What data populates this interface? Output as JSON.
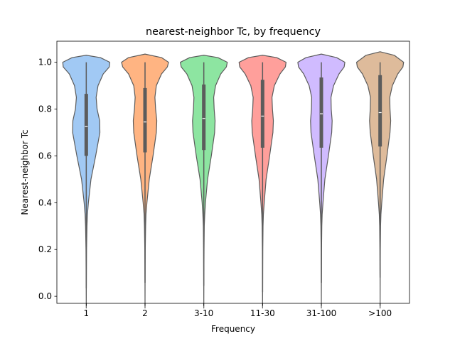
{
  "chart_data": {
    "type": "violin",
    "title": "nearest-neighbor Tc, by frequency",
    "xlabel": "Frequency",
    "ylabel": "Nearest-neighbor Tc",
    "ylim": [
      -0.03,
      1.09
    ],
    "yticks": [
      0.0,
      0.2,
      0.4,
      0.6,
      0.8,
      1.0
    ],
    "ytick_labels": [
      "0.0",
      "0.2",
      "0.4",
      "0.6",
      "0.8",
      "1.0"
    ],
    "categories": [
      "1",
      "2",
      "3-10",
      "11-30",
      "31-100",
      ">100"
    ],
    "colors": [
      "#a1c9f4",
      "#ffb482",
      "#8de5a1",
      "#ff9f9b",
      "#d0bbff",
      "#debb9b"
    ],
    "grid": false,
    "series": [
      {
        "category": "1",
        "min": 0.035,
        "q1": 0.6,
        "median": 0.725,
        "q3": 0.865,
        "max": 1.0,
        "density": [
          [
            -0.05,
            0
          ],
          [
            0.035,
            0.003
          ],
          [
            0.1,
            0.006
          ],
          [
            0.2,
            0.012
          ],
          [
            0.3,
            0.03
          ],
          [
            0.35,
            0.05
          ],
          [
            0.4,
            0.09
          ],
          [
            0.5,
            0.2
          ],
          [
            0.6,
            0.4
          ],
          [
            0.7,
            0.58
          ],
          [
            0.75,
            0.57
          ],
          [
            0.8,
            0.46
          ],
          [
            0.85,
            0.42
          ],
          [
            0.9,
            0.5
          ],
          [
            0.95,
            0.72
          ],
          [
            0.98,
            0.98
          ],
          [
            1.0,
            1.0
          ],
          [
            1.02,
            0.6
          ],
          [
            1.03,
            0
          ]
        ]
      },
      {
        "category": "2",
        "min": 0.058,
        "q1": 0.615,
        "median": 0.745,
        "q3": 0.89,
        "max": 1.0,
        "density": [
          [
            -0.05,
            0
          ],
          [
            0.058,
            0.003
          ],
          [
            0.1,
            0.005
          ],
          [
            0.2,
            0.01
          ],
          [
            0.3,
            0.025
          ],
          [
            0.35,
            0.04
          ],
          [
            0.4,
            0.08
          ],
          [
            0.5,
            0.18
          ],
          [
            0.6,
            0.34
          ],
          [
            0.7,
            0.48
          ],
          [
            0.75,
            0.5
          ],
          [
            0.8,
            0.45
          ],
          [
            0.85,
            0.42
          ],
          [
            0.9,
            0.48
          ],
          [
            0.95,
            0.7
          ],
          [
            0.98,
            0.95
          ],
          [
            1.0,
            1.0
          ],
          [
            1.02,
            0.7
          ],
          [
            1.035,
            0
          ]
        ]
      },
      {
        "category": "3-10",
        "min": 0.045,
        "q1": 0.625,
        "median": 0.76,
        "q3": 0.905,
        "max": 1.0,
        "density": [
          [
            -0.05,
            0
          ],
          [
            0.045,
            0.003
          ],
          [
            0.1,
            0.005
          ],
          [
            0.2,
            0.01
          ],
          [
            0.3,
            0.02
          ],
          [
            0.35,
            0.04
          ],
          [
            0.4,
            0.07
          ],
          [
            0.5,
            0.16
          ],
          [
            0.6,
            0.32
          ],
          [
            0.7,
            0.46
          ],
          [
            0.75,
            0.48
          ],
          [
            0.8,
            0.44
          ],
          [
            0.85,
            0.42
          ],
          [
            0.9,
            0.5
          ],
          [
            0.95,
            0.72
          ],
          [
            0.98,
            0.96
          ],
          [
            1.0,
            1.0
          ],
          [
            1.02,
            0.6
          ],
          [
            1.03,
            0
          ]
        ]
      },
      {
        "category": "11-30",
        "min": 0.018,
        "q1": 0.635,
        "median": 0.77,
        "q3": 0.925,
        "max": 1.0,
        "density": [
          [
            -0.05,
            0
          ],
          [
            0.018,
            0.003
          ],
          [
            0.1,
            0.005
          ],
          [
            0.2,
            0.009
          ],
          [
            0.3,
            0.02
          ],
          [
            0.35,
            0.035
          ],
          [
            0.4,
            0.07
          ],
          [
            0.5,
            0.15
          ],
          [
            0.6,
            0.3
          ],
          [
            0.7,
            0.44
          ],
          [
            0.75,
            0.46
          ],
          [
            0.8,
            0.42
          ],
          [
            0.85,
            0.4
          ],
          [
            0.9,
            0.5
          ],
          [
            0.95,
            0.74
          ],
          [
            0.98,
            0.97
          ],
          [
            1.0,
            1.0
          ],
          [
            1.02,
            0.6
          ],
          [
            1.03,
            0
          ]
        ]
      },
      {
        "category": "31-100",
        "min": 0.058,
        "q1": 0.635,
        "median": 0.78,
        "q3": 0.935,
        "max": 1.0,
        "density": [
          [
            -0.05,
            0
          ],
          [
            0.058,
            0.003
          ],
          [
            0.1,
            0.005
          ],
          [
            0.2,
            0.009
          ],
          [
            0.3,
            0.02
          ],
          [
            0.35,
            0.035
          ],
          [
            0.4,
            0.07
          ],
          [
            0.5,
            0.15
          ],
          [
            0.6,
            0.3
          ],
          [
            0.7,
            0.44
          ],
          [
            0.75,
            0.46
          ],
          [
            0.8,
            0.42
          ],
          [
            0.85,
            0.41
          ],
          [
            0.9,
            0.52
          ],
          [
            0.95,
            0.75
          ],
          [
            0.98,
            0.97
          ],
          [
            1.0,
            1.0
          ],
          [
            1.02,
            0.65
          ],
          [
            1.035,
            0
          ]
        ]
      },
      {
        "category": ">100",
        "min": 0.08,
        "q1": 0.64,
        "median": 0.785,
        "q3": 0.945,
        "max": 1.0,
        "density": [
          [
            -0.05,
            0
          ],
          [
            0.08,
            0.003
          ],
          [
            0.1,
            0.005
          ],
          [
            0.2,
            0.009
          ],
          [
            0.3,
            0.02
          ],
          [
            0.35,
            0.035
          ],
          [
            0.4,
            0.07
          ],
          [
            0.5,
            0.15
          ],
          [
            0.6,
            0.29
          ],
          [
            0.7,
            0.42
          ],
          [
            0.75,
            0.45
          ],
          [
            0.8,
            0.42
          ],
          [
            0.85,
            0.41
          ],
          [
            0.9,
            0.52
          ],
          [
            0.95,
            0.75
          ],
          [
            0.98,
            0.97
          ],
          [
            1.0,
            1.0
          ],
          [
            1.03,
            0.6
          ],
          [
            1.045,
            0
          ]
        ]
      }
    ]
  }
}
